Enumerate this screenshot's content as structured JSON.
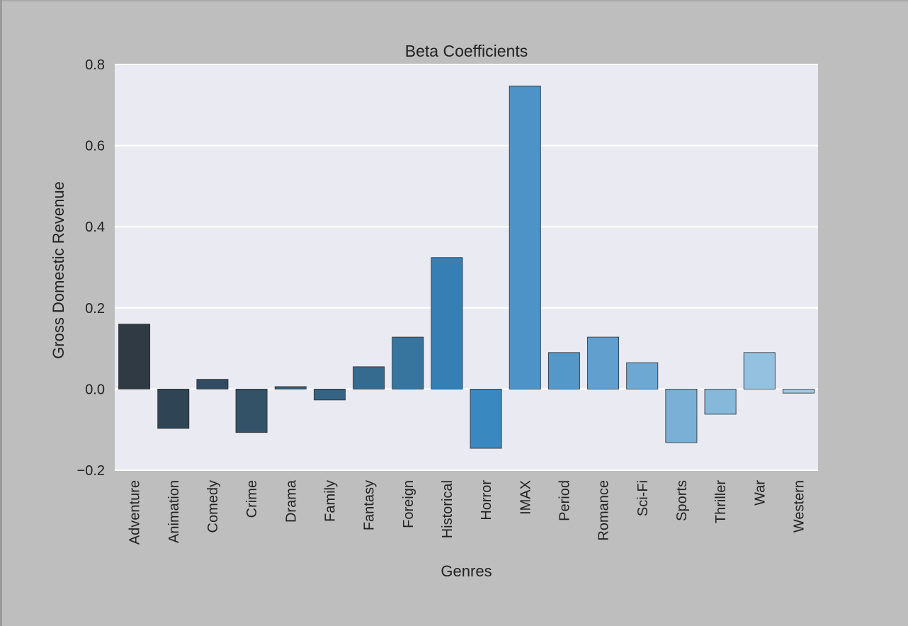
{
  "chart_data": {
    "type": "bar",
    "title": "Beta Coefficients",
    "xlabel": "Genres",
    "ylabel": "Gross Domestic Revenue",
    "ylim": [
      -0.2,
      0.8
    ],
    "yticks": [
      -0.2,
      0.0,
      0.2,
      0.4,
      0.6,
      0.8
    ],
    "ytick_labels": [
      "−0.2",
      "0.0",
      "0.2",
      "0.4",
      "0.6",
      "0.8"
    ],
    "grid": true,
    "categories": [
      "Adventure",
      "Animation",
      "Comedy",
      "Crime",
      "Drama",
      "Family",
      "Fantasy",
      "Foreign",
      "Historical",
      "Horror",
      "IMAX",
      "Period",
      "Romance",
      "Sci-Fi",
      "Sports",
      "Thriller",
      "War",
      "Western"
    ],
    "values": [
      0.16,
      -0.097,
      0.024,
      -0.107,
      0.006,
      -0.027,
      0.055,
      0.128,
      0.324,
      -0.146,
      0.747,
      0.09,
      0.128,
      0.065,
      -0.132,
      -0.062,
      0.09,
      -0.01
    ],
    "colors": [
      "#2f3a45",
      "#2f4454",
      "#314b60",
      "#335268",
      "#345b77",
      "#356383",
      "#366b90",
      "#37749e",
      "#357fb5",
      "#3a88c0",
      "#4d93c7",
      "#5498c9",
      "#609fce",
      "#6da8d2",
      "#7ab0d5",
      "#86b8da",
      "#94c1e0",
      "#a2cae5"
    ],
    "plot_background": "#eaeaf2",
    "page_background": "#bebebe"
  }
}
